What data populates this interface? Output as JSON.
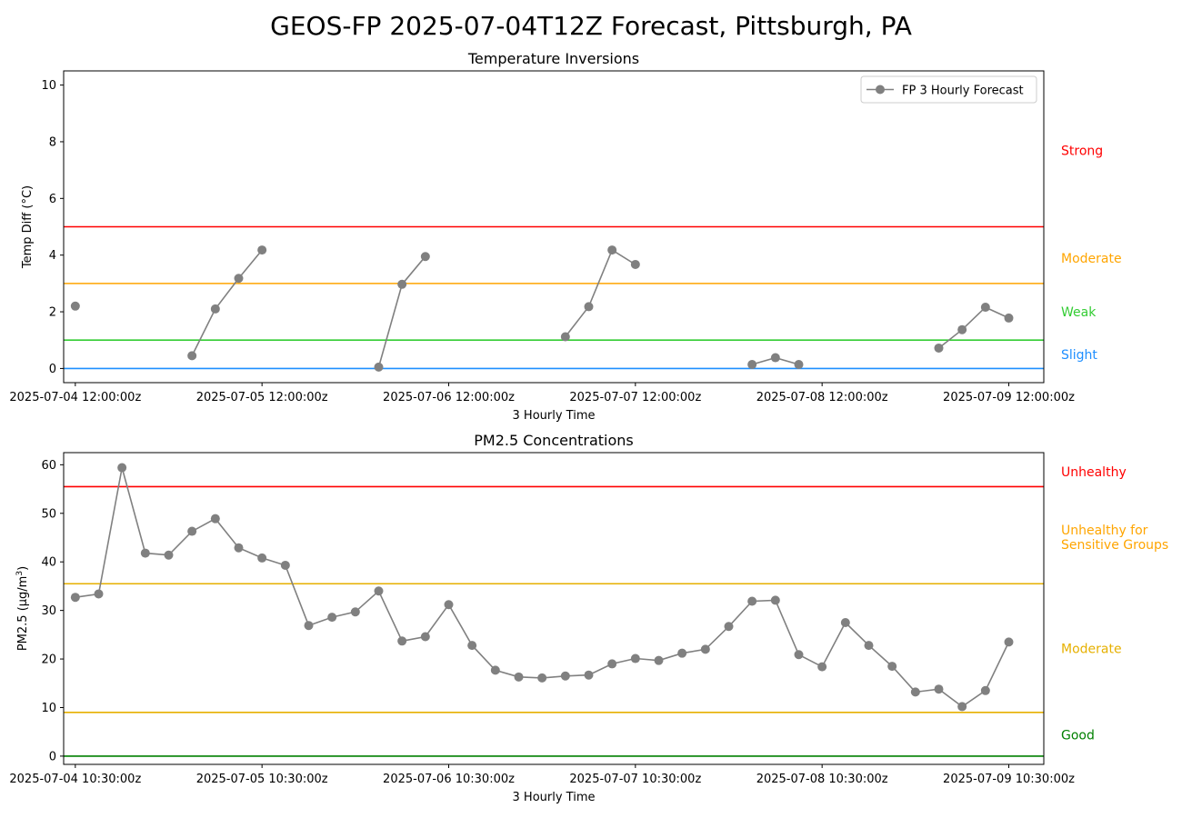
{
  "figure": {
    "title": "GEOS-FP 2025-07-04T12Z Forecast, Pittsburgh, PA"
  },
  "chart_data": [
    {
      "type": "line",
      "title": "Temperature Inversions",
      "xlabel": "3 Hourly Time",
      "ylabel": "Temp Diff (°C)",
      "xlim_hours": [
        -1.5,
        124.5
      ],
      "ylim": [
        -0.5,
        10.5
      ],
      "yticks": [
        0,
        2,
        4,
        6,
        8,
        10
      ],
      "xticks": [
        {
          "hours": 0,
          "label": "2025-07-04 12:00:00z"
        },
        {
          "hours": 24,
          "label": "2025-07-05 12:00:00z"
        },
        {
          "hours": 48,
          "label": "2025-07-06 12:00:00z"
        },
        {
          "hours": 72,
          "label": "2025-07-07 12:00:00z"
        },
        {
          "hours": 96,
          "label": "2025-07-08 12:00:00z"
        },
        {
          "hours": 120,
          "label": "2025-07-09 12:00:00z"
        }
      ],
      "legend": {
        "position": "top-right",
        "entries": [
          "FP 3 Hourly Forecast"
        ]
      },
      "thresholds": [
        {
          "value": 0,
          "color": "#1f8fff"
        },
        {
          "value": 1,
          "color": "#33cc33"
        },
        {
          "value": 3,
          "color": "#ffa500"
        },
        {
          "value": 5,
          "color": "#ff0000"
        }
      ],
      "category_labels": [
        {
          "label": "Strong",
          "y": 7.7,
          "color": "#ff0000"
        },
        {
          "label": "Moderate",
          "y": 3.9,
          "color": "#ffa500"
        },
        {
          "label": "Weak",
          "y": 2.0,
          "color": "#33cc33"
        },
        {
          "label": "Slight",
          "y": 0.5,
          "color": "#1f8fff"
        }
      ],
      "series": [
        {
          "name": "FP 3 Hourly Forecast",
          "color": "#808080",
          "segments": [
            [
              {
                "x": 0,
                "y": 2.2
              }
            ],
            [
              {
                "x": 15,
                "y": 0.45
              },
              {
                "x": 18,
                "y": 2.1
              },
              {
                "x": 21,
                "y": 3.18
              },
              {
                "x": 24,
                "y": 4.18
              }
            ],
            [
              {
                "x": 39,
                "y": 0.05
              },
              {
                "x": 42,
                "y": 2.97
              },
              {
                "x": 45,
                "y": 3.95
              }
            ],
            [
              {
                "x": 63,
                "y": 1.12
              },
              {
                "x": 66,
                "y": 2.18
              },
              {
                "x": 69,
                "y": 4.18
              },
              {
                "x": 72,
                "y": 3.67
              }
            ],
            [
              {
                "x": 87,
                "y": 0.14
              },
              {
                "x": 90,
                "y": 0.38
              },
              {
                "x": 93,
                "y": 0.14
              }
            ],
            [
              {
                "x": 111,
                "y": 0.72
              },
              {
                "x": 114,
                "y": 1.37
              },
              {
                "x": 117,
                "y": 2.16
              },
              {
                "x": 120,
                "y": 1.78
              }
            ]
          ]
        }
      ]
    },
    {
      "type": "line",
      "title": "PM2.5 Concentrations",
      "xlabel": "3 Hourly Time",
      "ylabel": "PM2.5 (µg/m",
      "ylabel_superscript": "3",
      "ylabel_close": ")",
      "xlim_hours": [
        -1.5,
        124.5
      ],
      "ylim": [
        -1.7,
        62.5
      ],
      "yticks": [
        0,
        10,
        20,
        30,
        40,
        50,
        60
      ],
      "xticks": [
        {
          "hours": 0,
          "label": "2025-07-04 10:30:00z"
        },
        {
          "hours": 24,
          "label": "2025-07-05 10:30:00z"
        },
        {
          "hours": 48,
          "label": "2025-07-06 10:30:00z"
        },
        {
          "hours": 72,
          "label": "2025-07-07 10:30:00z"
        },
        {
          "hours": 96,
          "label": "2025-07-08 10:30:00z"
        },
        {
          "hours": 120,
          "label": "2025-07-09 10:30:00z"
        }
      ],
      "thresholds": [
        {
          "value": 0,
          "color": "#008000"
        },
        {
          "value": 9,
          "color": "#e6b000"
        },
        {
          "value": 35.5,
          "color": "#e6b000"
        },
        {
          "value": 55.5,
          "color": "#ff0000"
        }
      ],
      "category_labels": [
        {
          "lines": [
            "Unhealthy"
          ],
          "y": 58.6,
          "color": "#ff0000"
        },
        {
          "lines": [
            "Unhealthy for",
            "Sensitive Groups"
          ],
          "y": 46.6,
          "color": "#ffa500"
        },
        {
          "lines": [
            "Moderate"
          ],
          "y": 22.2,
          "color": "#e6b000"
        },
        {
          "lines": [
            "Good"
          ],
          "y": 4.4,
          "color": "#008000"
        }
      ],
      "series": [
        {
          "color": "#808080",
          "x_start": 0,
          "x_step": 3,
          "values": [
            32.7,
            33.4,
            59.4,
            41.8,
            41.4,
            46.3,
            48.9,
            42.9,
            40.8,
            39.3,
            26.9,
            28.6,
            29.7,
            34.0,
            23.7,
            24.6,
            31.2,
            22.8,
            17.7,
            16.3,
            16.1,
            16.5,
            16.7,
            19.0,
            20.1,
            19.7,
            21.2,
            22.0,
            26.7,
            31.9,
            32.1,
            20.9,
            18.4,
            27.5,
            22.8,
            18.5,
            13.2,
            13.8,
            10.2,
            13.5,
            23.5
          ]
        }
      ]
    }
  ]
}
